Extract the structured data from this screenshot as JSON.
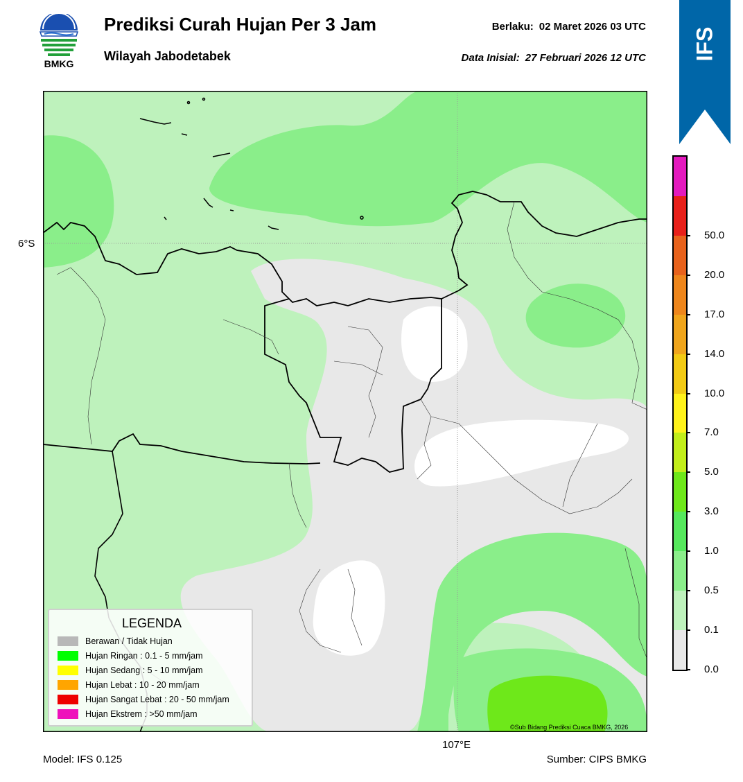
{
  "header": {
    "title": "Prediksi Curah Hujan Per 3 Jam",
    "region": "Wilayah Jabodetabek",
    "valid_label": "Berlaku:",
    "valid_time": "02 Maret 2026 03 UTC",
    "init_label": "Data Inisial:",
    "init_time": "27 Februari 2026 12 UTC"
  },
  "logo": {
    "name": "BMKG",
    "icon": "bmkg-logo"
  },
  "ribbon": {
    "label": "IFS",
    "color": "#0066a8"
  },
  "map": {
    "lat_label": "6°S",
    "lon_label": "107°E",
    "copyright": "©Sub Bidang Prediksi Cuaca BMKG, 2026"
  },
  "legend": {
    "title": "LEGENDA",
    "items": [
      {
        "label": "Berawan / Tidak Hujan",
        "color": "#b8b8b8"
      },
      {
        "label": "Hujan Ringan : 0.1 - 5 mm/jam",
        "color": "#00ff00"
      },
      {
        "label": "Hujan Sedang : 5 - 10 mm/jam",
        "color": "#ffff00"
      },
      {
        "label": "Hujan Lebat : 10 - 20 mm/jam",
        "color": "#ffa500"
      },
      {
        "label": "Hujan Sangat Lebat : 20 - 50 mm/jam",
        "color": "#ee0000"
      },
      {
        "label": "Hujan Ekstrem : >50 mm/jam",
        "color": "#ee11bb"
      }
    ]
  },
  "colorbar": {
    "labels": [
      "0.0",
      "0.1",
      "0.5",
      "1.0",
      "3.0",
      "5.0",
      "7.0",
      "10.0",
      "14.0",
      "17.0",
      "20.0",
      "50.0"
    ],
    "colors": [
      "#e8e8e8",
      "#bef2bc",
      "#8aee8a",
      "#55e85c",
      "#6ee81a",
      "#c2ee1a",
      "#fff21a",
      "#f2ca14",
      "#f0a51c",
      "#ee861c",
      "#e8621c",
      "#e8201a",
      "#e41abe"
    ]
  },
  "footer": {
    "model": "Model: IFS 0.125",
    "source": "Sumber: CIPS BMKG"
  }
}
